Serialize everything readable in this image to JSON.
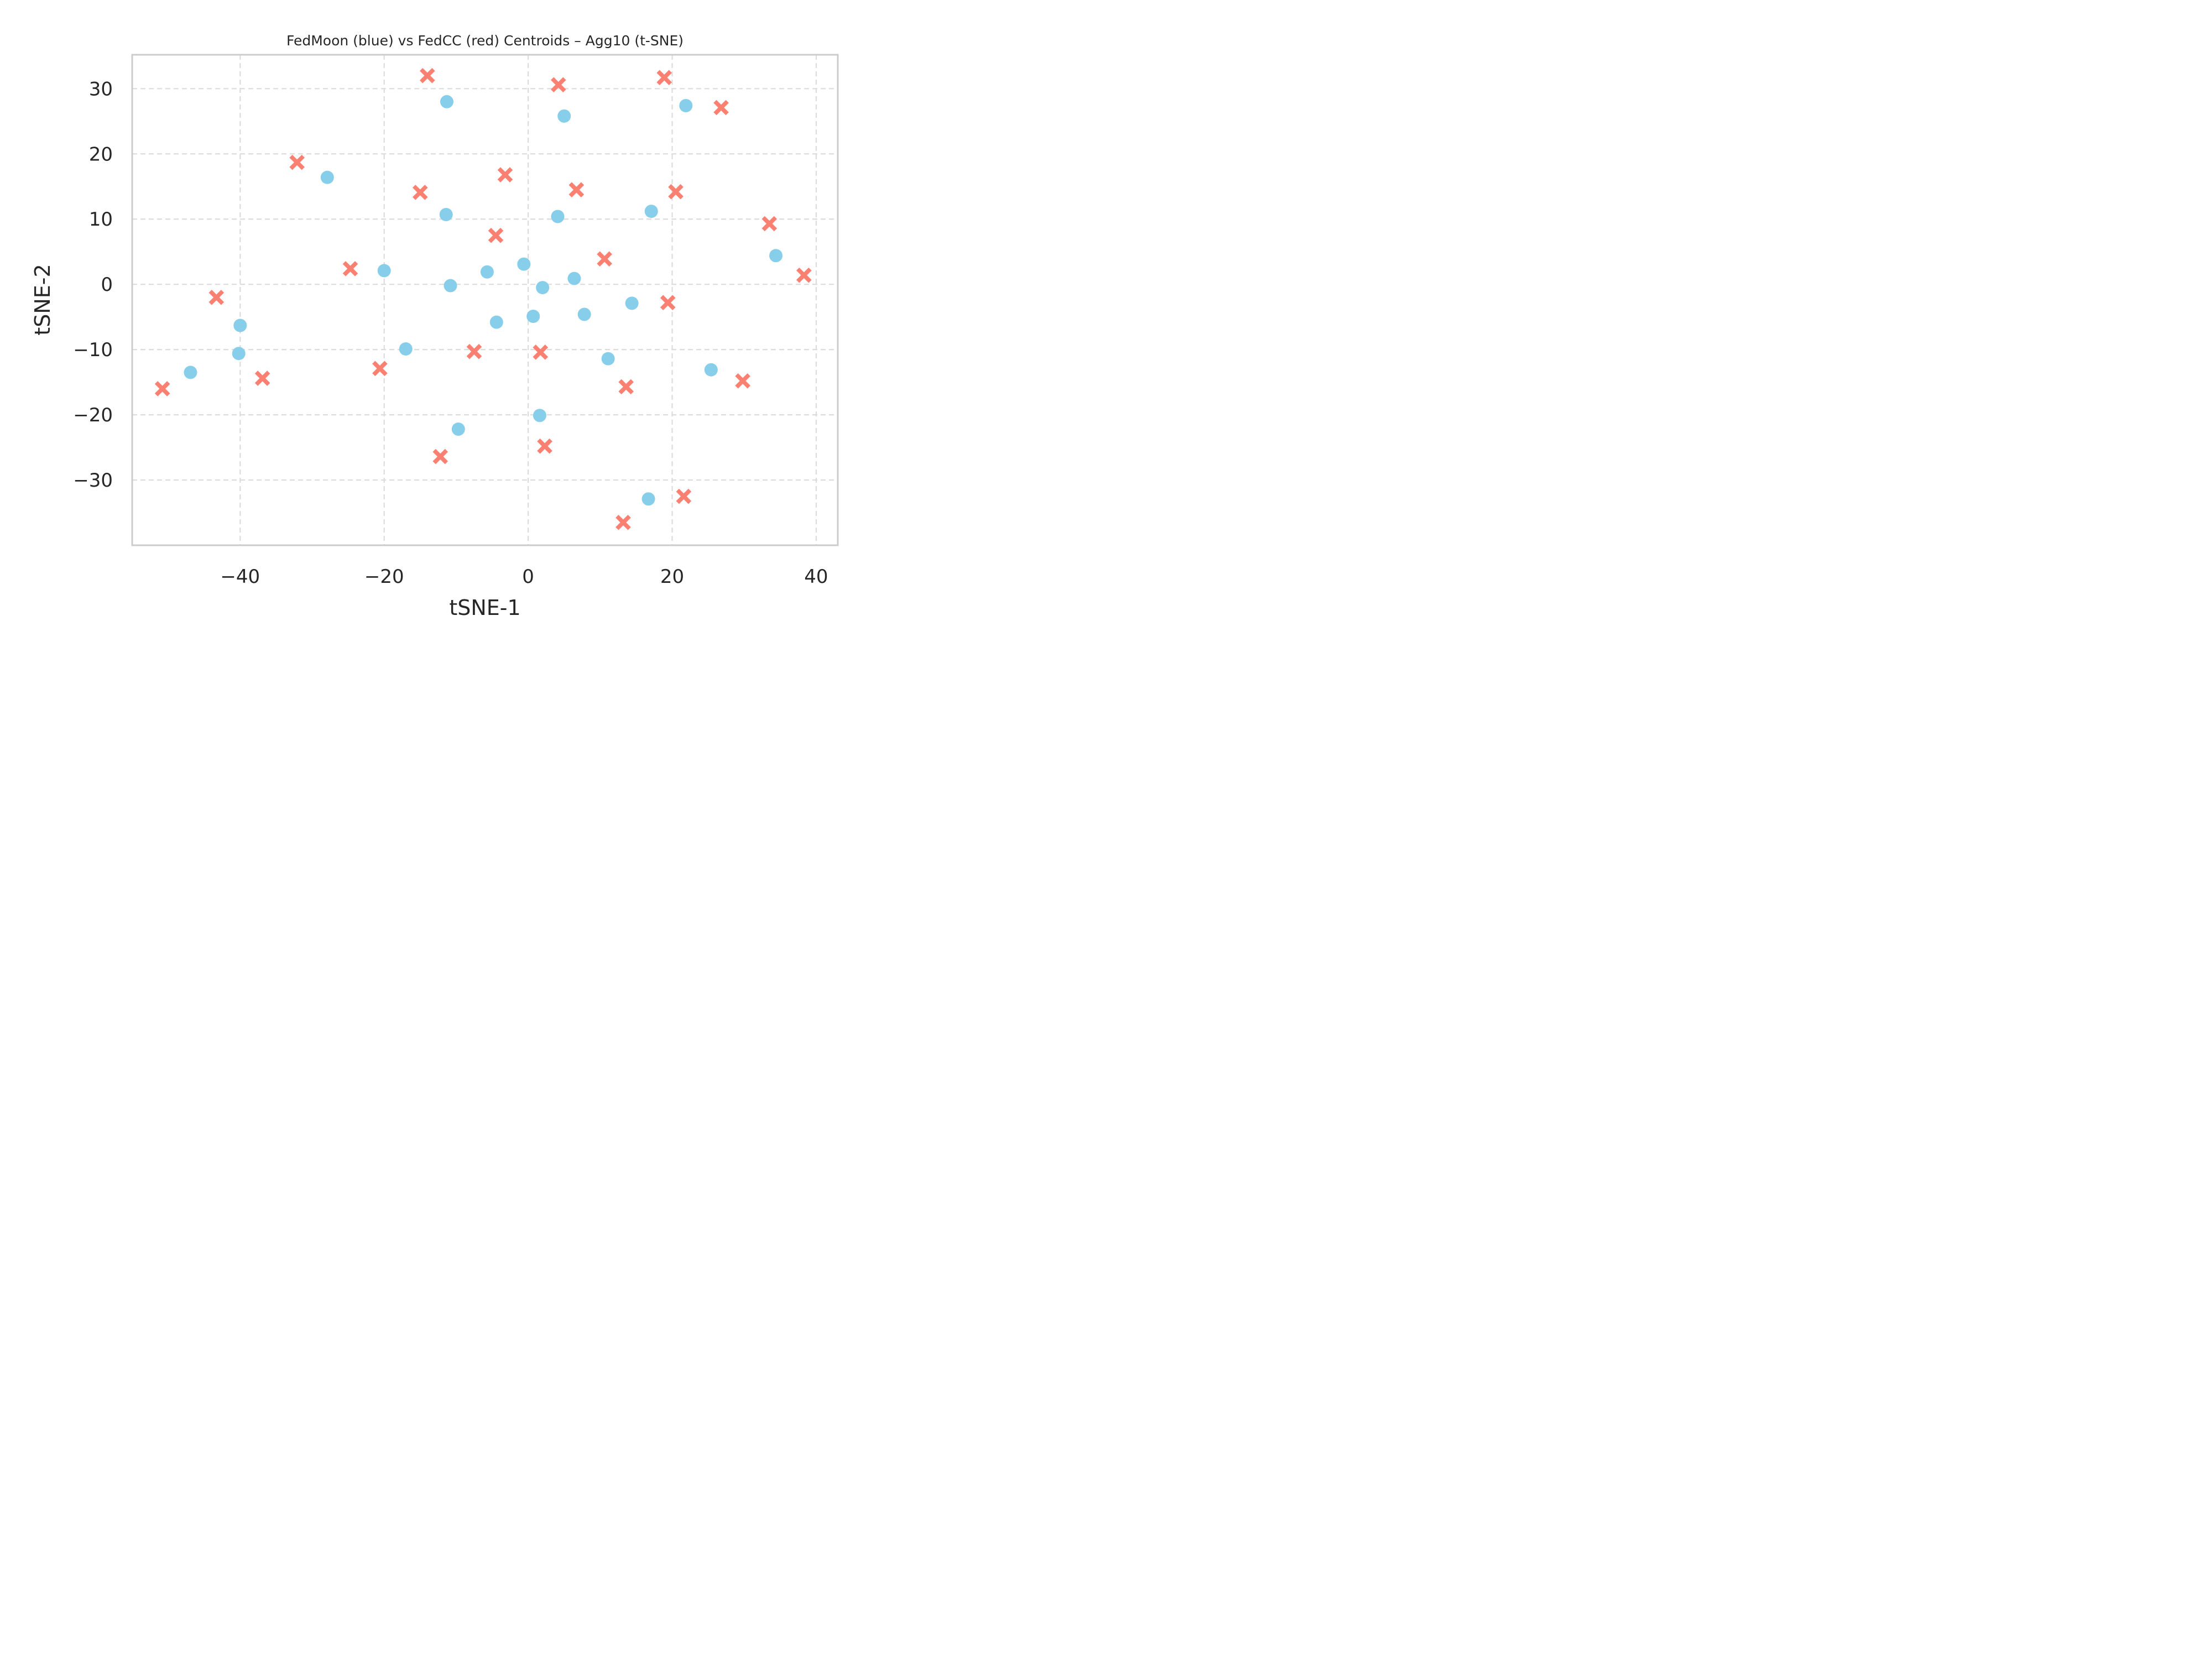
{
  "chart_data": {
    "type": "scatter",
    "title": "FedMoon (blue) vs FedCC (red) Centroids – Agg10 (t-SNE)",
    "xlabel": "tSNE-1",
    "ylabel": "tSNE-2",
    "xlim": [
      -55,
      43
    ],
    "ylim": [
      -40,
      35.2
    ],
    "xticks": [
      -40,
      -20,
      0,
      20,
      40
    ],
    "yticks": [
      -30,
      -20,
      -10,
      0,
      10,
      20,
      30
    ],
    "xtick_labels": [
      "−40",
      "−20",
      "0",
      "20",
      "40"
    ],
    "ytick_labels": [
      "−30",
      "−20",
      "−10",
      "0",
      "10",
      "20",
      "30"
    ],
    "grid": true,
    "series": [
      {
        "marker": "circle",
        "color": "#87ceeb",
        "points": [
          [
            -11.3,
            28.0
          ],
          [
            5.0,
            25.8
          ],
          [
            21.9,
            27.4
          ],
          [
            -27.9,
            16.4
          ],
          [
            -11.4,
            10.7
          ],
          [
            4.1,
            10.4
          ],
          [
            17.1,
            11.2
          ],
          [
            34.4,
            4.4
          ],
          [
            -20.0,
            2.1
          ],
          [
            -0.6,
            3.1
          ],
          [
            -5.7,
            1.9
          ],
          [
            -10.8,
            -0.2
          ],
          [
            2.0,
            -0.5
          ],
          [
            6.4,
            0.9
          ],
          [
            14.4,
            -2.9
          ],
          [
            7.8,
            -4.6
          ],
          [
            0.7,
            -4.9
          ],
          [
            -4.4,
            -5.8
          ],
          [
            -40.0,
            -6.3
          ],
          [
            -40.2,
            -10.6
          ],
          [
            -17.0,
            -9.9
          ],
          [
            11.1,
            -11.4
          ],
          [
            25.4,
            -13.1
          ],
          [
            -46.9,
            -13.5
          ],
          [
            1.6,
            -20.1
          ],
          [
            -9.7,
            -22.2
          ],
          [
            16.7,
            -32.9
          ]
        ]
      },
      {
        "marker": "x",
        "color": "#fa8072",
        "points": [
          [
            -14.0,
            32.0
          ],
          [
            4.2,
            30.6
          ],
          [
            18.9,
            31.7
          ],
          [
            26.8,
            27.1
          ],
          [
            -32.1,
            18.7
          ],
          [
            -3.2,
            16.8
          ],
          [
            -15.0,
            14.1
          ],
          [
            6.7,
            14.5
          ],
          [
            20.5,
            14.2
          ],
          [
            33.5,
            9.3
          ],
          [
            -4.5,
            7.5
          ],
          [
            10.6,
            3.9
          ],
          [
            38.3,
            1.4
          ],
          [
            -24.7,
            2.4
          ],
          [
            -43.3,
            -2.0
          ],
          [
            19.4,
            -2.8
          ],
          [
            -7.5,
            -10.3
          ],
          [
            1.7,
            -10.4
          ],
          [
            -20.6,
            -12.9
          ],
          [
            -36.9,
            -14.4
          ],
          [
            29.8,
            -14.8
          ],
          [
            13.6,
            -15.7
          ],
          [
            -50.8,
            -16.0
          ],
          [
            2.3,
            -24.8
          ],
          [
            -12.2,
            -26.4
          ],
          [
            21.6,
            -32.5
          ],
          [
            13.2,
            -36.5
          ]
        ]
      }
    ]
  }
}
